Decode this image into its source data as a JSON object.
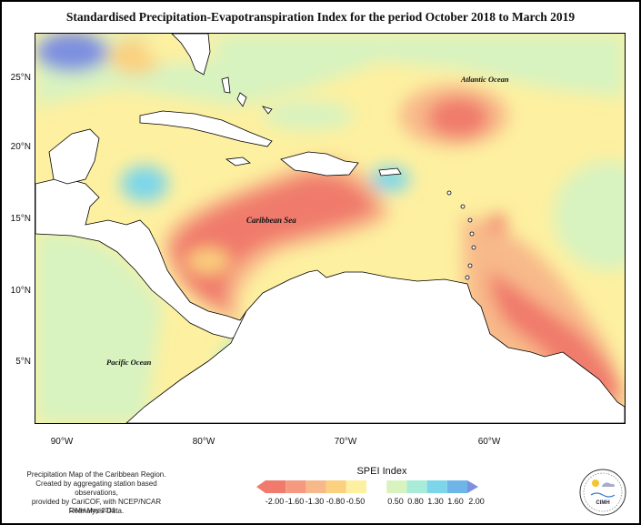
{
  "title": "Standardised Precipitation-Evapotranspiration Index for the period October 2018 to March 2019",
  "map": {
    "labels": {
      "atlantic": "Atlantic Ocean",
      "caribbean": "Caribbean Sea",
      "pacific": "Pacific Ocean"
    },
    "lat_ticks": [
      "25°N",
      "20°N",
      "15°N",
      "10°N",
      "5°N"
    ],
    "lon_ticks": [
      "90°W",
      "80°W",
      "70°W",
      "60°W"
    ]
  },
  "legend": {
    "title": "SPEI Index",
    "values": [
      "-2.00",
      "-1.60",
      "-1.30",
      "-0.80",
      "-0.50",
      "0.50",
      "0.80",
      "1.30",
      "1.60",
      "2.00"
    ],
    "colors": [
      "#f07a6c",
      "#f59a80",
      "#f8b98a",
      "#fbd07e",
      "#fdf0a0",
      "#d8f3c0",
      "#a8ecd8",
      "#7cd6ea",
      "#6fb6e8",
      "#7d8fe0"
    ]
  },
  "credit": {
    "line1": "Precipitation Map of the Caribbean Region.",
    "line2": "Created by aggregating station based observations,",
    "line3": "provided by CariCOF, with NCEP/NCAR Reanalysis Data.",
    "footer": "CIMH May-2019"
  },
  "logo": {
    "text": "CIMH"
  }
}
